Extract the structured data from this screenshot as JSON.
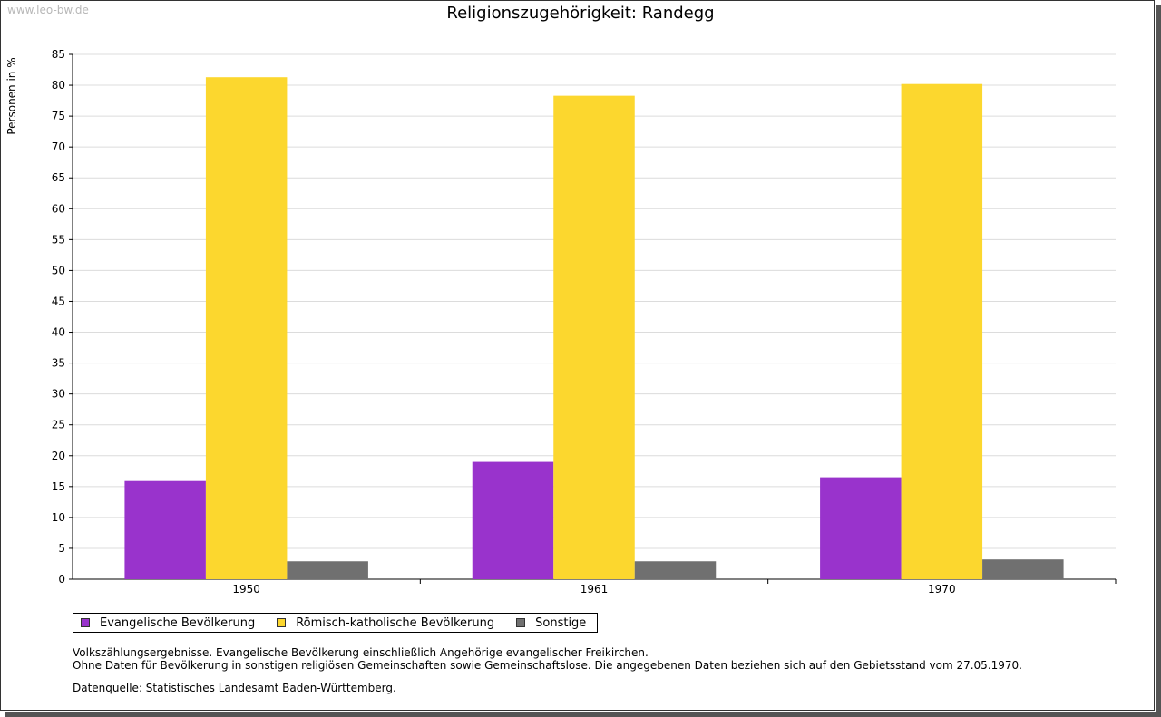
{
  "watermark": "www.leo-bw.de",
  "chart_data": {
    "type": "bar",
    "title": "Religionszugehörigkeit: Randegg",
    "xlabel": "",
    "ylabel": "Personen in %",
    "ylim": [
      0,
      85
    ],
    "ytick_step": 5,
    "grid": true,
    "legend_position": "bottom-left",
    "categories": [
      "1950",
      "1961",
      "1970"
    ],
    "series": [
      {
        "name": "Evangelische Bevölkerung",
        "color": "#9933cc",
        "values": [
          15.9,
          19.0,
          16.5
        ]
      },
      {
        "name": "Römisch-katholische Bevölkerung",
        "color": "#fcd72e",
        "values": [
          81.3,
          78.3,
          80.2
        ]
      },
      {
        "name": "Sonstige",
        "color": "#707070",
        "values": [
          2.9,
          2.9,
          3.2
        ]
      }
    ]
  },
  "notes": {
    "line1": "Volkszählungsergebnisse. Evangelische Bevölkerung einschließlich Angehörige evangelischer Freikirchen.",
    "line2": "Ohne Daten für Bevölkerung in sonstigen religiösen Gemeinschaften sowie Gemeinschaftslose. Die angegebenen Daten beziehen sich auf den Gebietsstand vom 27.05.1970.",
    "source": "Datenquelle: Statistisches Landesamt Baden-Württemberg."
  }
}
